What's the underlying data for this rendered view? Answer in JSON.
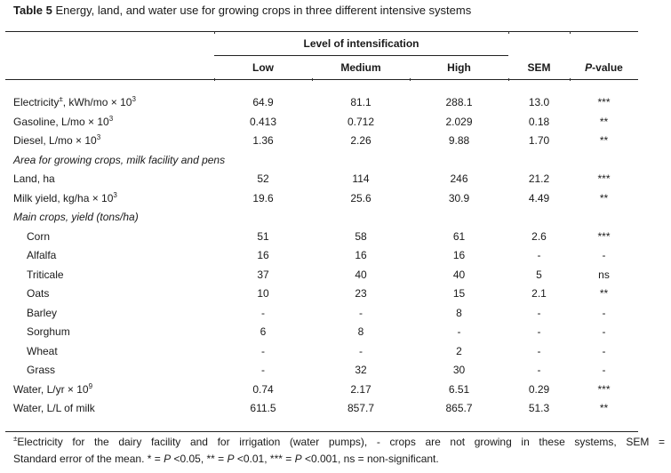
{
  "table": {
    "title_prefix": "Table 5",
    "title_text": " Energy, land, and water use for growing crops in three different intensive systems",
    "group_header": "Level of intensification",
    "columns": {
      "low": "Low",
      "medium": "Medium",
      "high": "High",
      "sem": "SEM",
      "p_italic": "P",
      "p_rest": "-value"
    },
    "rows": [
      {
        "label": "Electricity",
        "label_sup": "±",
        "label_rest": ", kWh/mo × 10",
        "label_sup2": "3",
        "low": "64.9",
        "medium": "81.1",
        "high": "288.1",
        "sem": "13.0",
        "p": "***"
      },
      {
        "label": "Gasoline, L/mo × 10",
        "label_sup2": "3",
        "low": "0.413",
        "medium": "0.712",
        "high": "2.029",
        "sem": "0.18",
        "p": "**"
      },
      {
        "label": "Diesel, L/mo × 10",
        "label_sup2": "3",
        "low": "1.36",
        "medium": "2.26",
        "high": "9.88",
        "sem": "1.70",
        "p": "**"
      },
      {
        "label": "Area for growing crops, milk facility and pens",
        "section": true
      },
      {
        "label": "Land, ha",
        "low": "52",
        "medium": "114",
        "high": "246",
        "sem": "21.2",
        "p": "***"
      },
      {
        "label": "Milk yield, kg/ha × 10",
        "label_sup2": "3",
        "low": "19.6",
        "medium": "25.6",
        "high": "30.9",
        "sem": "4.49",
        "p": "**"
      },
      {
        "label": "Main crops, yield (tons/ha)",
        "section": true
      },
      {
        "label": "Corn",
        "indent": true,
        "low": "51",
        "medium": "58",
        "high": "61",
        "sem": "2.6",
        "p": "***"
      },
      {
        "label": "Alfalfa",
        "indent": true,
        "low": "16",
        "medium": "16",
        "high": "16",
        "sem": "-",
        "p": "-"
      },
      {
        "label": "Triticale",
        "indent": true,
        "low": "37",
        "medium": "40",
        "high": "40",
        "sem": "5",
        "p": "ns"
      },
      {
        "label": "Oats",
        "indent": true,
        "low": "10",
        "medium": "23",
        "high": "15",
        "sem": "2.1",
        "p": "**"
      },
      {
        "label": "Barley",
        "indent": true,
        "low": "-",
        "medium": "-",
        "high": "8",
        "sem": "-",
        "p": "-"
      },
      {
        "label": "Sorghum",
        "indent": true,
        "low": "6",
        "medium": "8",
        "high": "-",
        "sem": "-",
        "p": "-"
      },
      {
        "label": "Wheat",
        "indent": true,
        "low": "-",
        "medium": "-",
        "high": "2",
        "sem": "-",
        "p": "-"
      },
      {
        "label": "Grass",
        "indent": true,
        "low": "-",
        "medium": "32",
        "high": "30",
        "sem": "-",
        "p": "-"
      },
      {
        "label": "Water, L/yr × 10",
        "label_sup2": "9",
        "low": "0.74",
        "medium": "2.17",
        "high": "6.51",
        "sem": "0.29",
        "p": "***"
      },
      {
        "label": "Water, L/L of milk",
        "low": "611.5",
        "medium": "857.7",
        "high": "865.7",
        "sem": "51.3",
        "p": "**"
      }
    ],
    "footnote": {
      "line1_sup": "±",
      "line1": "Electricity for the dairy facility and for irrigation (water pumps), - crops are not growing in these systems, SEM =",
      "line2_parts": [
        {
          "t": "Standard error of the mean. * = ",
          "i": false
        },
        {
          "t": "P",
          "i": true
        },
        {
          "t": " <0.05, ** = ",
          "i": false
        },
        {
          "t": "P",
          "i": true
        },
        {
          "t": " <0.01, *** = ",
          "i": false
        },
        {
          "t": "P",
          "i": true
        },
        {
          "t": " <0.001, ns = non-significant.",
          "i": false
        }
      ]
    }
  }
}
